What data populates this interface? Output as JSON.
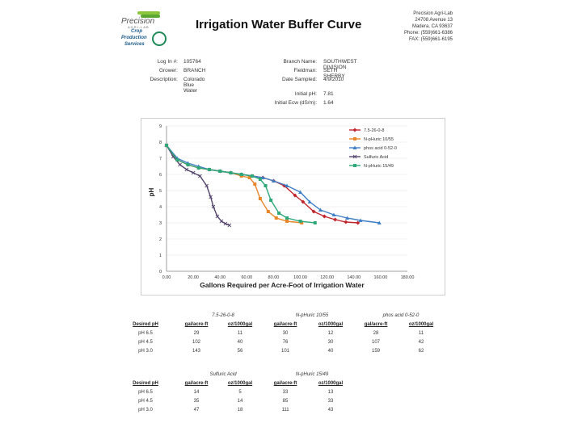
{
  "header": {
    "logo_top_text": "Precision",
    "logo_top_sub": "AGRI-LAB",
    "logo_bottom_lines": [
      "Crop",
      "Production",
      "Services"
    ],
    "title": "Irrigation Water Buffer Curve",
    "address_lines": [
      "Precision Agri-Lab",
      "24708 Avenue 13",
      "Madera, CA 93637",
      "Phone: (559)661-6386",
      "FAX: (559)661-6195"
    ]
  },
  "info": {
    "left": [
      {
        "label": "Log In #:",
        "value": "105764"
      },
      {
        "label": "Grower:",
        "value": "BRANCH"
      },
      {
        "label": "Description:",
        "value": "Colorado Blue Water"
      }
    ],
    "right": [
      {
        "label": "Branch Name:",
        "value": "SOUTHWEST DIVISION"
      },
      {
        "label": "Fieldman:",
        "value": "SETH SHERBY"
      },
      {
        "label": "Date Sampled:",
        "value": "4/9/2010"
      }
    ],
    "initial": [
      {
        "label": "Initial pH:",
        "value": "7.81"
      },
      {
        "label": "Initial Ecw (dS/m):",
        "value": "1.64"
      }
    ]
  },
  "chart_data": {
    "type": "line",
    "xlabel": "Gallons Required per Acre-Foot of Irrigation Water",
    "ylabel": "pH",
    "xlim": [
      0,
      180
    ],
    "ylim": [
      0,
      9
    ],
    "xticks": [
      "0.00",
      "20.00",
      "40.00",
      "60.00",
      "80.00",
      "100.00",
      "120.00",
      "140.00",
      "160.00",
      "180.00"
    ],
    "yticks": [
      "0",
      "1",
      "2",
      "3",
      "4",
      "5",
      "6",
      "7",
      "8",
      "9"
    ],
    "series": [
      {
        "name": "7.5-26-0-8",
        "color": "#c0262d",
        "marker": "diamond",
        "x": [
          0,
          8,
          16,
          24,
          32,
          40,
          48,
          56,
          64,
          72,
          80,
          88,
          96,
          102,
          110,
          118,
          126,
          134,
          143
        ],
        "y": [
          7.8,
          6.9,
          6.6,
          6.4,
          6.3,
          6.2,
          6.1,
          6.0,
          5.9,
          5.8,
          5.6,
          5.3,
          4.7,
          4.3,
          3.7,
          3.4,
          3.2,
          3.05,
          3.0
        ]
      },
      {
        "name": "N-pHuric 10/55",
        "color": "#e8862a",
        "marker": "square",
        "x": [
          0,
          8,
          16,
          24,
          32,
          40,
          48,
          56,
          62,
          66,
          70,
          76,
          82,
          90,
          101
        ],
        "y": [
          7.8,
          6.9,
          6.6,
          6.4,
          6.3,
          6.2,
          6.1,
          5.9,
          5.8,
          5.4,
          4.5,
          3.7,
          3.3,
          3.1,
          3.0
        ]
      },
      {
        "name": "phos acid 0-52-0",
        "color": "#3f7fc6",
        "marker": "triangle",
        "x": [
          0,
          8,
          16,
          24,
          32,
          40,
          48,
          56,
          64,
          72,
          80,
          90,
          100,
          107,
          115,
          125,
          135,
          145,
          159
        ],
        "y": [
          7.8,
          7.0,
          6.7,
          6.5,
          6.3,
          6.2,
          6.1,
          6.0,
          5.9,
          5.8,
          5.6,
          5.3,
          4.9,
          4.3,
          3.8,
          3.5,
          3.3,
          3.15,
          3.0
        ]
      },
      {
        "name": "Sulfuric Acid",
        "color": "#55456e",
        "marker": "x",
        "x": [
          0,
          5,
          10,
          15,
          20,
          25,
          30,
          33,
          35,
          38,
          41,
          44,
          47
        ],
        "y": [
          7.8,
          7.1,
          6.6,
          6.3,
          6.1,
          5.9,
          5.3,
          4.6,
          4.0,
          3.4,
          3.1,
          2.95,
          2.85
        ]
      },
      {
        "name": "N-pHuric 15/49",
        "color": "#2ea878",
        "marker": "square",
        "x": [
          0,
          8,
          16,
          24,
          32,
          40,
          48,
          56,
          64,
          70,
          74,
          78,
          84,
          90,
          100,
          111
        ],
        "y": [
          7.8,
          6.9,
          6.6,
          6.4,
          6.3,
          6.2,
          6.1,
          6.0,
          5.9,
          5.7,
          5.3,
          4.4,
          3.6,
          3.3,
          3.1,
          3.0
        ]
      }
    ]
  },
  "tables": {
    "desired_label": "Desired pH",
    "col_headers": [
      "gal/acre-ft",
      "oz/1000gal"
    ],
    "row_labels": [
      "pH 6.5",
      "pH 4.5",
      "pH 3.0"
    ],
    "top": {
      "groups": [
        {
          "name": "7.5-26-0-8",
          "values": [
            [
              "29",
              "11"
            ],
            [
              "102",
              "40"
            ],
            [
              "143",
              "56"
            ]
          ]
        },
        {
          "name": "N-pHuric 10/55",
          "values": [
            [
              "30",
              "12"
            ],
            [
              "76",
              "30"
            ],
            [
              "101",
              "40"
            ]
          ]
        },
        {
          "name": "phos acid 0-52-0",
          "values": [
            [
              "28",
              "11"
            ],
            [
              "107",
              "42"
            ],
            [
              "159",
              "62"
            ]
          ]
        }
      ]
    },
    "bottom": {
      "groups": [
        {
          "name": "Sulfuric Acid",
          "values": [
            [
              "14",
              "5"
            ],
            [
              "35",
              "14"
            ],
            [
              "47",
              "18"
            ]
          ]
        },
        {
          "name": "N-pHuric 15/49",
          "values": [
            [
              "33",
              "13"
            ],
            [
              "85",
              "33"
            ],
            [
              "111",
              "43"
            ]
          ]
        }
      ]
    }
  }
}
